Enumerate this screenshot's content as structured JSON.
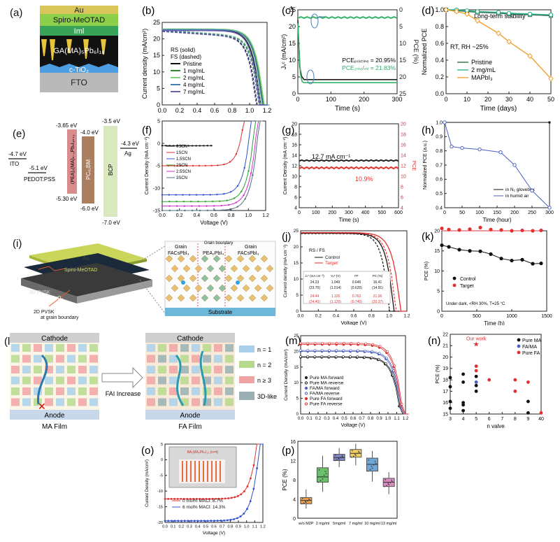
{
  "panels": {
    "a": {
      "label": "(a)",
      "layers": [
        "Au",
        "Spiro-MeOTAD",
        "Iml",
        "GA(MA)₅Pb₆I₁₈",
        "c-TiO₂",
        "FTO"
      ]
    },
    "b": {
      "label": "(b)",
      "legend_title_1": "RS (solid)",
      "legend_title_2": "FS (dashed)",
      "colors": {
        "Pristine": "#111111",
        "1 mg/mL": "#2e8b2e",
        "2 mg/mL": "#7fd07f",
        "4 mg/mL": "#4a7fb5",
        "7 mg/mL": "#6b5fae"
      }
    },
    "c": {
      "label": "(c)"
    },
    "d": {
      "label": "(d)"
    },
    "e": {
      "label": "(e)",
      "levels": [
        "-4.7 eV",
        "ITO",
        "-5.1 eV",
        "PEDOT:PSS",
        "-3.65 eV",
        "-5.30 eV",
        "(PEA)₂(MA)ₙ₋₁PbₙI₃ₙ₊₁",
        "-4.0 eV",
        "PC₆₁BM",
        "-6.0 eV",
        "-3.5 eV",
        "BCP",
        "-7.0 eV",
        "-4.3 eV",
        "Ag"
      ]
    },
    "f": {
      "label": "(f)"
    },
    "g": {
      "label": "(g)"
    },
    "h": {
      "label": "(h)"
    },
    "i": {
      "label": "(i)",
      "texts": [
        "Au",
        "Spiro-MeOTAD",
        "3D PVSK",
        "ITO/SnO₂",
        "2D PVSK",
        "at grain boundary",
        "Grain",
        "FACsPbI₃",
        "Grain boundary",
        "PEA₂PbI₄",
        "Grain",
        "FACsPbI₃",
        "Substrate"
      ]
    },
    "j": {
      "label": "(j)"
    },
    "k": {
      "label": "(k)"
    },
    "l": {
      "label": "(l)",
      "texts": [
        "Cathode",
        "Anode",
        "MA Film",
        "FAI Increase",
        "Cathode",
        "Anode",
        "FA Film",
        "n = 1",
        "n = 2",
        "n ≥ 3",
        "3D-like"
      ]
    },
    "m": {
      "label": "(m)"
    },
    "n": {
      "label": "(n)"
    },
    "o": {
      "label": "(o)"
    },
    "p": {
      "label": "(p)"
    }
  },
  "chart_data": [
    {
      "panel": "b",
      "type": "line",
      "xlabel": "Voltage (V)",
      "ylabel": "Current density (mA/cm²)",
      "xlim": [
        0,
        1.2
      ],
      "ylim": [
        0,
        25
      ],
      "xticks": [
        "0.0",
        "0.2",
        "0.4",
        "0.6",
        "0.8",
        "1.0",
        "1.2"
      ],
      "yticks": [
        "0",
        "5",
        "10",
        "15",
        "20",
        "25"
      ],
      "series": [
        {
          "name": "Pristine",
          "jsc": 22.6,
          "voc": 1.12
        },
        {
          "name": "1 mg/mL",
          "jsc": 22.9,
          "voc": 1.15
        },
        {
          "name": "2 mg/mL",
          "jsc": 23.0,
          "voc": 1.16
        },
        {
          "name": "4 mg/mL",
          "jsc": 22.8,
          "voc": 1.14
        },
        {
          "name": "7 mg/mL",
          "jsc": 22.5,
          "voc": 1.11
        }
      ]
    },
    {
      "panel": "c",
      "type": "line",
      "xlabel": "Time (s)",
      "ylabel": "Jₛᶜ (mA/cm²)",
      "ylabel_right": "PCE (%)",
      "xlim": [
        0,
        320
      ],
      "ylim": [
        0,
        25
      ],
      "xticks": [
        "0",
        "100",
        "200",
        "300"
      ],
      "yticks": [
        "0",
        "5",
        "10",
        "15",
        "20",
        "25"
      ],
      "yticks_right": [
        "0",
        "5",
        "10",
        "15",
        "20",
        "25"
      ],
      "annotations": [
        "PCEₚᵣᵢₛₜᵢₙₑ = 20.95%",
        "PCE₂ₘₑ/ₘₗ = 21.83%"
      ],
      "series": [
        {
          "name": "Jsc",
          "values_const": 22.7
        },
        {
          "name": "PCE",
          "values_const": 21.83
        }
      ]
    },
    {
      "panel": "d",
      "type": "line",
      "title": "Long-term stability",
      "annotation": "RT, RH ~25%",
      "xlabel": "Time (days)",
      "ylabel": "Normalized PCE",
      "xlim": [
        0,
        50
      ],
      "ylim": [
        0,
        1.0
      ],
      "xticks": [
        "0",
        "10",
        "20",
        "30",
        "40",
        "50"
      ],
      "yticks": [
        "0.0",
        "0.2",
        "0.4",
        "0.6",
        "0.8",
        "1.0"
      ],
      "x": [
        0,
        5,
        10,
        15,
        25,
        30,
        40,
        50
      ],
      "series": [
        {
          "name": "Pristine",
          "values": [
            1.0,
            0.99,
            0.98,
            0.97,
            0.96,
            0.95,
            0.94,
            0.93
          ]
        },
        {
          "name": "2 mg/mL",
          "values": [
            1.0,
            1.0,
            0.99,
            0.98,
            0.97,
            0.96,
            0.95,
            0.94
          ]
        },
        {
          "name": "MAPbI₃",
          "values": [
            1.0,
            0.98,
            0.95,
            0.87,
            0.72,
            0.62,
            0.45,
            0.18
          ]
        }
      ]
    },
    {
      "panel": "f",
      "type": "line",
      "xlabel": "Voltage (V)",
      "ylabel": "Current Density (mA cm⁻²)",
      "xlim": [
        0,
        1.2
      ],
      "ylim": [
        -15,
        5
      ],
      "xticks": [
        "0.0",
        "0.2",
        "0.4",
        "0.6",
        "0.8",
        "1.0",
        "1.2"
      ],
      "yticks": [
        "5",
        "0",
        "-5",
        "-10",
        "-15"
      ],
      "series": [
        {
          "name": "0SCN",
          "jsc": -0.5,
          "voc": 0.55
        },
        {
          "name": "1SCN",
          "jsc": -5.0,
          "voc": 0.9
        },
        {
          "name": "1.5SCN",
          "jsc": -11.5,
          "voc": 1.0
        },
        {
          "name": "2SCN",
          "jsc": -13.0,
          "voc": 1.05
        },
        {
          "name": "2.5SCN",
          "jsc": -14.0,
          "voc": 1.08
        },
        {
          "name": "3SCN",
          "jsc": -15.0,
          "voc": 1.1
        }
      ]
    },
    {
      "panel": "g",
      "type": "line",
      "xlabel": "Time (s)",
      "ylabel": "Current Density (mA cm⁻²)",
      "ylabel_right": "PCE",
      "xlim": [
        0,
        600
      ],
      "xticks": [
        "0",
        "100",
        "200",
        "300",
        "400",
        "500",
        "600"
      ],
      "yticks": [
        "4",
        "6",
        "8",
        "10",
        "12",
        "14",
        "16",
        "18",
        "20"
      ],
      "yticks_right": [
        "4",
        "6",
        "8",
        "10",
        "12",
        "14",
        "16",
        "18",
        "20"
      ],
      "annotations": [
        "12.7 mA cm⁻¹",
        "10.9%"
      ],
      "series": [
        {
          "name": "Current density",
          "values_const": 12.7
        },
        {
          "name": "PCE",
          "values_const": 10.9
        }
      ]
    },
    {
      "panel": "h",
      "type": "line",
      "xlabel": "Time (hour)",
      "ylabel": "Normalized PCE (a.u.)",
      "xlim": [
        0,
        300
      ],
      "ylim": [
        0.4,
        1.0
      ],
      "xticks": [
        "0",
        "50",
        "100",
        "150",
        "200",
        "250",
        "300"
      ],
      "yticks": [
        "0.4",
        "0.5",
        "0.6",
        "0.7",
        "0.8",
        "0.9",
        "1.0"
      ],
      "series": [
        {
          "name": "in N₂ glovebox",
          "x": [
            0,
            300
          ],
          "values": [
            1.0,
            1.0
          ]
        },
        {
          "name": "in humid air",
          "x": [
            0,
            20,
            50,
            100,
            160,
            200,
            250,
            300
          ],
          "values": [
            1.0,
            0.83,
            0.82,
            0.81,
            0.79,
            0.7,
            0.52,
            0.4
          ]
        }
      ]
    },
    {
      "panel": "j",
      "type": "line",
      "xlabel": "Voltage (V)",
      "ylabel": "Current density (mA cm⁻²)",
      "xlim": [
        0,
        1.2
      ],
      "ylim": [
        0,
        25
      ],
      "xticks": [
        "0.0",
        "0.2",
        "0.4",
        "0.6",
        "0.8",
        "1.0",
        "1.2"
      ],
      "yticks": [
        "0",
        "5",
        "10",
        "15",
        "20",
        "25"
      ],
      "legend_title": "RS / FS",
      "series": [
        {
          "name": "Control",
          "jsc": 24.23,
          "voc": 1.049
        },
        {
          "name": "Target",
          "jsc": 24.44,
          "voc": 1.126
        }
      ],
      "table": {
        "headers": [
          "Jₛᶜ (mA cm⁻²)",
          "Vₒᶜ (V)",
          "FF",
          "PC (%)"
        ],
        "rows": [
          [
            "24.23",
            "1.049",
            "0.646",
            "16.41"
          ],
          [
            "(23.70)",
            "(1.014)",
            "(0.620)",
            "(14.91)"
          ],
          [
            "24.44",
            "1.126",
            "0.763",
            "21.06"
          ],
          [
            "(24.40)",
            "(1.125)",
            "(0.740)",
            "(20.37)"
          ]
        ]
      }
    },
    {
      "panel": "k",
      "type": "line",
      "xlabel": "Time (h)",
      "ylabel": "PCE (%)",
      "xlim": [
        0,
        1500
      ],
      "ylim": [
        0,
        20
      ],
      "xticks": [
        "0",
        "500",
        "1000",
        "1500"
      ],
      "yticks": [
        "0",
        "5",
        "10",
        "15",
        "20"
      ],
      "annotation": "Under dark, <RH 30%, T=25 °C",
      "x": [
        0,
        100,
        250,
        400,
        550,
        700,
        850,
        1000,
        1150,
        1300,
        1420
      ],
      "series": [
        {
          "name": "Control",
          "values": [
            16.4,
            16.0,
            15.3,
            15.0,
            14.9,
            14.2,
            13.1,
            12.6,
            12.8,
            11.8,
            11.9
          ]
        },
        {
          "name": "Target",
          "values": [
            20.6,
            20.3,
            20.2,
            20.4,
            20.8,
            20.3,
            20.2,
            20.0,
            20.1,
            20.0,
            20.1
          ]
        }
      ]
    },
    {
      "panel": "m",
      "type": "line",
      "xlabel": "Voltage (V)",
      "ylabel": "Current Density (mA/cm²)",
      "xlim": [
        0,
        1.2
      ],
      "ylim": [
        0,
        25
      ],
      "xticks": [
        "0.0",
        "0.1",
        "0.2",
        "0.3",
        "0.4",
        "0.5",
        "0.6",
        "0.7",
        "0.8",
        "0.9",
        "1.0",
        "1.1",
        "1.2"
      ],
      "yticks": [
        "0",
        "5",
        "10",
        "15",
        "20",
        "25"
      ],
      "series": [
        {
          "name": "Pure MA forward",
          "jsc": 18.1,
          "voc": 1.14
        },
        {
          "name": "Pure MA reverse",
          "jsc": 18.3,
          "voc": 1.15
        },
        {
          "name": "FA/MA forward",
          "jsc": 20.0,
          "voc": 1.15
        },
        {
          "name": "FA/MA reverse",
          "jsc": 20.3,
          "voc": 1.16
        },
        {
          "name": "Pure FA forward",
          "jsc": 22.2,
          "voc": 1.16
        },
        {
          "name": "Pure FA reverse",
          "jsc": 22.6,
          "voc": 1.17
        }
      ]
    },
    {
      "panel": "n",
      "type": "scatter",
      "xlabel": "n valve",
      "ylabel": "PCE (%)",
      "xticks": [
        "3",
        "4",
        "5",
        "6",
        "7",
        "8",
        "9",
        "40"
      ],
      "yticks": [
        "15",
        "16",
        "17",
        "18",
        "19",
        "20",
        "21",
        "22"
      ],
      "annotation": "Our work",
      "series": [
        {
          "name": "Pure MA",
          "points": [
            [
              3,
              15.5
            ],
            [
              3,
              16.1
            ],
            [
              3,
              17.4
            ],
            [
              3,
              18.2
            ],
            [
              4,
              15.3
            ],
            [
              4,
              15.8
            ],
            [
              4,
              16.0
            ],
            [
              4,
              17.8
            ],
            [
              4,
              18.5
            ],
            [
              5,
              17.0
            ],
            [
              5,
              17.5
            ],
            [
              5,
              18.3
            ],
            [
              9,
              15.1
            ],
            [
              9,
              16.1
            ]
          ]
        },
        {
          "name": "FA/MA",
          "points": [
            [
              5,
              17.8
            ]
          ]
        },
        {
          "name": "Pure FA",
          "points": [
            [
              5,
              18.8
            ],
            [
              5,
              19.2
            ],
            [
              6,
              18.0
            ],
            [
              8,
              17.0
            ],
            [
              8,
              18.0
            ],
            [
              9,
              17.8
            ],
            [
              40,
              15.1
            ]
          ]
        },
        {
          "name": "Our work",
          "points": [
            [
              5,
              21.1
            ]
          ]
        }
      ]
    },
    {
      "panel": "o",
      "type": "line",
      "xlabel": "Voltage (V)",
      "ylabel": "Current Density (mA/cm²)",
      "xlim": [
        0,
        1.2
      ],
      "ylim": [
        -20,
        5
      ],
      "xticks": [
        "0.0",
        "0.1",
        "0.2",
        "0.3",
        "0.4",
        "0.5",
        "0.6",
        "0.7",
        "0.8",
        "0.9",
        "1.0",
        "1.1",
        "1.2"
      ],
      "yticks": [
        "5",
        "0",
        "-5",
        "-10",
        "-15",
        "-20"
      ],
      "inset_title": "BA₂MA₃Pb₄I₁₃ (n=4)",
      "series": [
        {
          "name": "0 mol% MACl: 8.7%",
          "jsc": -12.5,
          "voc": 1.1
        },
        {
          "name": "6 mol% MACl: 14.3%",
          "jsc": -19.5,
          "voc": 1.14
        }
      ]
    },
    {
      "panel": "p",
      "type": "box",
      "ylabel": "PCE (%)",
      "ylim": [
        0,
        16
      ],
      "yticks": [
        "0",
        "4",
        "8",
        "12",
        "16"
      ],
      "categories": [
        "w/o M2P",
        "2 mg/ml",
        "5mg/ml",
        "7 mg/ml",
        "10 mg/ml",
        "13 mg/ml"
      ],
      "boxes": [
        {
          "min": 2.0,
          "q1": 3.0,
          "median": 3.7,
          "q3": 4.3,
          "max": 6.0,
          "color": "#e8a050"
        },
        {
          "min": 5.5,
          "q1": 7.5,
          "median": 8.6,
          "q3": 10.5,
          "max": 13.0,
          "color": "#6cbf6c"
        },
        {
          "min": 10.6,
          "q1": 12.0,
          "median": 12.6,
          "q3": 13.3,
          "max": 14.6,
          "color": "#7f86c8"
        },
        {
          "min": 11.0,
          "q1": 12.7,
          "median": 13.5,
          "q3": 14.3,
          "max": 15.5,
          "color": "#f0d060"
        },
        {
          "min": 7.6,
          "q1": 9.8,
          "median": 11.2,
          "q3": 12.5,
          "max": 14.0,
          "color": "#6fa8d8"
        },
        {
          "min": 5.0,
          "q1": 6.6,
          "median": 7.5,
          "q3": 8.3,
          "max": 9.6,
          "color": "#d98bc0"
        }
      ]
    }
  ]
}
